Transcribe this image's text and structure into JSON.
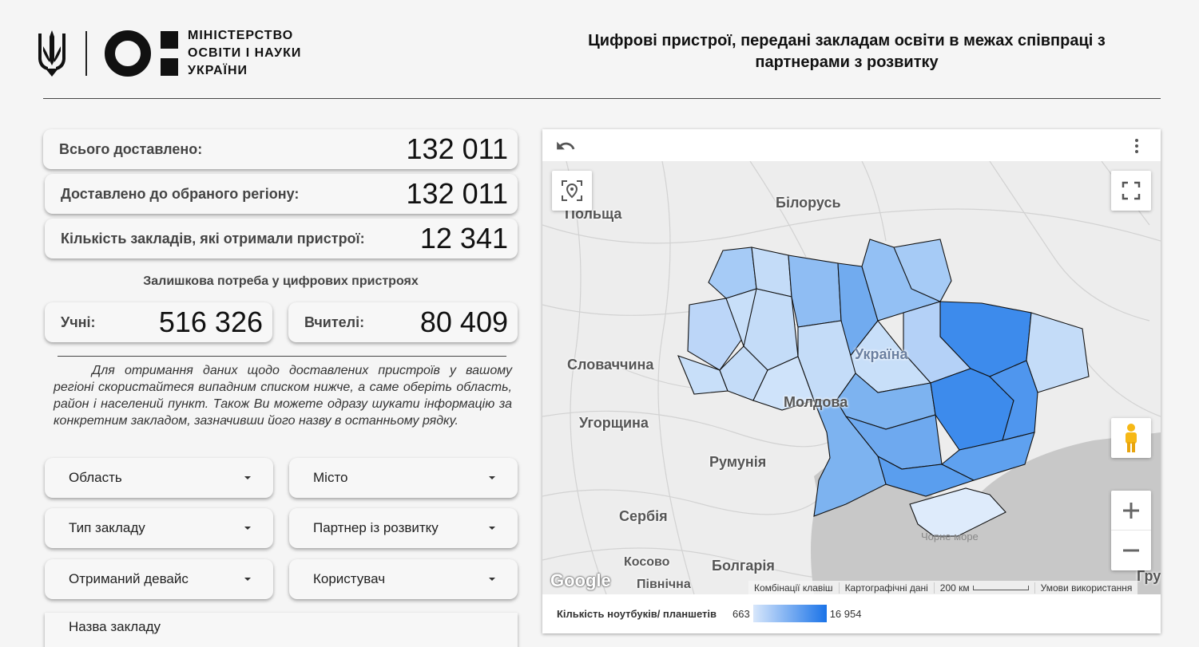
{
  "header": {
    "ministry_lines": [
      "МІНІСТЕРСТВО",
      "ОСВІТИ І НАУКИ",
      "УКРАЇНИ"
    ],
    "title": "Цифрові пристрої, передані закладам освіти в межах співпраці з партнерами з розвитку"
  },
  "kpis": {
    "total": {
      "label": "Всього доставлено:",
      "value": "132 011"
    },
    "region": {
      "label": "Доставлено до обраного регіону:",
      "value": "132 011"
    },
    "institutions": {
      "label": "Кількість закладів, які отримали пристрої:",
      "value": "12 341"
    }
  },
  "need": {
    "title": "Залишкова потреба у цифрових пристроях",
    "students": {
      "label": "Учні:",
      "value": "516 326"
    },
    "teachers": {
      "label": "Вчителі:",
      "value": "80 409"
    }
  },
  "hint": "Для отримання даних щодо доставлених пристроїв у вашому регіоні скористайтеся випадним списком нижче, а саме оберіть область, район і населений пункт. Також Ви можете одразу шукати інформацію за конкретним закладом, зазначивши його назву в останньому рядку.",
  "filters": {
    "region": "Область",
    "city": "Місто",
    "school_type": "Тип закладу",
    "partner": "Партнер із розвитку",
    "device": "Отриманий девайс",
    "user": "Користувач",
    "school_name": "Назва закладу"
  },
  "map": {
    "labels": {
      "poland": "Польща",
      "belarus": "Білорусь",
      "slovakia": "Словаччина",
      "hungary": "Угорщина",
      "moldova": "Молдова",
      "romania": "Румунія",
      "serbia": "Сербія",
      "bulgaria": "Болгарія",
      "kosovo": "Косово",
      "north": "Північна",
      "ukraine": "Україна",
      "black_sea": "Чорне море",
      "edge": "Гру"
    },
    "google": "Google",
    "attribution": {
      "keys": "Комбінації клавіш",
      "data": "Картографічні дані",
      "scale": "200 км",
      "terms": "Умови використання"
    },
    "colors": {
      "low": "#d8e7fb",
      "high": "#1a73e8",
      "sea": "#c8c8c8",
      "land": "#ededed"
    }
  },
  "legend": {
    "title": "Кількість ноутбуків/ планшетів",
    "min": "663",
    "max": "16 954"
  }
}
